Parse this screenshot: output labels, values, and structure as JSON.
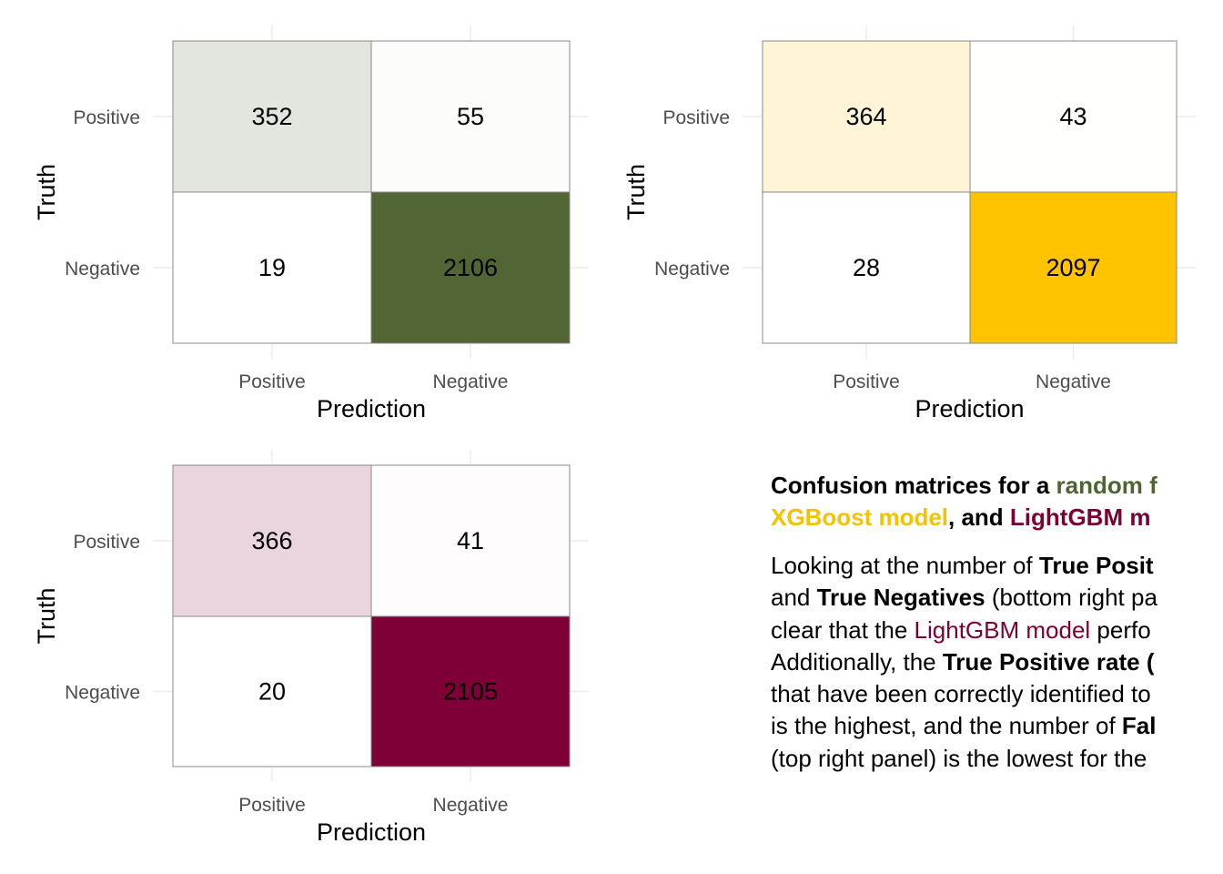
{
  "chart_data": [
    {
      "type": "heatmap",
      "xlabel": "Prediction",
      "ylabel": "Truth",
      "x_categories": [
        "Positive",
        "Negative"
      ],
      "y_categories": [
        "Positive",
        "Negative"
      ],
      "cells": [
        [
          352,
          55
        ],
        [
          19,
          2106
        ]
      ],
      "color_low": "#ffffff",
      "color_high": "#526534",
      "grid": true
    },
    {
      "type": "heatmap",
      "xlabel": "Prediction",
      "ylabel": "Truth",
      "x_categories": [
        "Positive",
        "Negative"
      ],
      "y_categories": [
        "Positive",
        "Negative"
      ],
      "cells": [
        [
          364,
          43
        ],
        [
          28,
          2097
        ]
      ],
      "color_low": "#ffffff",
      "color_high": "#ffc300",
      "grid": true
    },
    {
      "type": "heatmap",
      "xlabel": "Prediction",
      "ylabel": "Truth",
      "x_categories": [
        "Positive",
        "Negative"
      ],
      "y_categories": [
        "Positive",
        "Negative"
      ],
      "cells": [
        [
          366,
          41
        ],
        [
          20,
          2105
        ]
      ],
      "color_low": "#ffffff",
      "color_high": "#7f0036",
      "grid": true
    }
  ],
  "caption": {
    "title": {
      "line1": {
        "a": "Confusion matrices for a ",
        "b": "random f"
      },
      "line2": {
        "a": "XGBoost model",
        "b": ", and ",
        "c": "LightGBM m"
      }
    },
    "body": {
      "l1": {
        "a": "Looking at the number of ",
        "b": "True Posit"
      },
      "l2": {
        "a": "and ",
        "b": "True Negatives",
        "c": " (bottom right pa"
      },
      "l3": {
        "a": "clear that the ",
        "b": "LightGBM model",
        "c": " perfo"
      },
      "l4": {
        "a": "Additionally, the ",
        "b": "True Positive rate",
        "c": " ("
      },
      "l5": {
        "a": "that have been correctly identified to"
      },
      "l6": {
        "a": "is the highest, and the number of ",
        "b": "Fal"
      },
      "l7": {
        "a": "(top right panel) is the lowest for the"
      }
    }
  },
  "colors": {
    "random_forest": "#4f6433",
    "xgboost": "#f5c200",
    "lightgbm": "#7b0033"
  }
}
